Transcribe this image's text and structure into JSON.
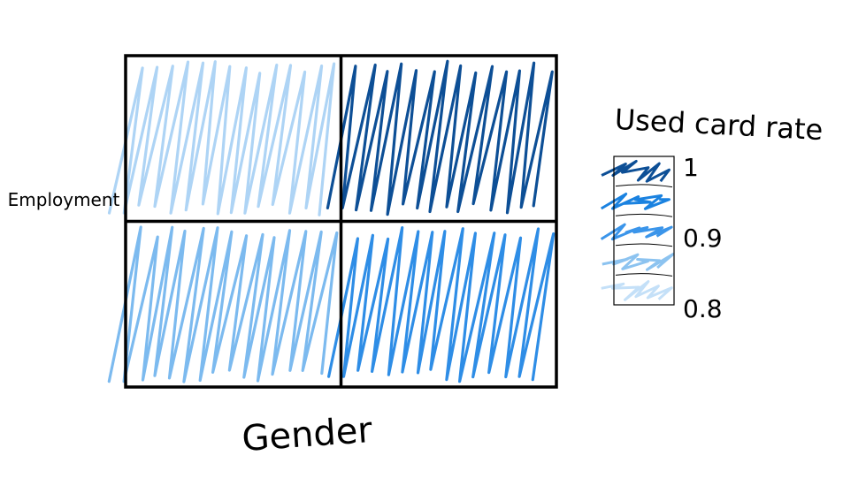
{
  "chart_data": {
    "type": "heatmap",
    "title": "",
    "xlabel": "Gender",
    "ylabel": "Employment",
    "rows": 2,
    "cols": 2,
    "cells": [
      {
        "row": 0,
        "col": 0,
        "value": 0.82
      },
      {
        "row": 0,
        "col": 1,
        "value": 1.0
      },
      {
        "row": 1,
        "col": 0,
        "value": 0.86
      },
      {
        "row": 1,
        "col": 1,
        "value": 0.92
      }
    ],
    "colorbar": {
      "title": "Used card rate",
      "range": [
        0.8,
        1.0
      ],
      "tick_labels": [
        "1",
        "0.9",
        "0.8"
      ],
      "tick_values": [
        1.0,
        0.9,
        0.8
      ],
      "swatch_colors": [
        "#0d4f96",
        "#1a82e0",
        "#3b95ea",
        "#8cc3f0",
        "#c4e0f8"
      ]
    },
    "fill_style": "hand-drawn scribble",
    "grid": true,
    "colors": {
      "high": "#0d4f96",
      "mid": "#1a82e0",
      "low": "#c4e0f8",
      "outline": "#000000"
    }
  }
}
